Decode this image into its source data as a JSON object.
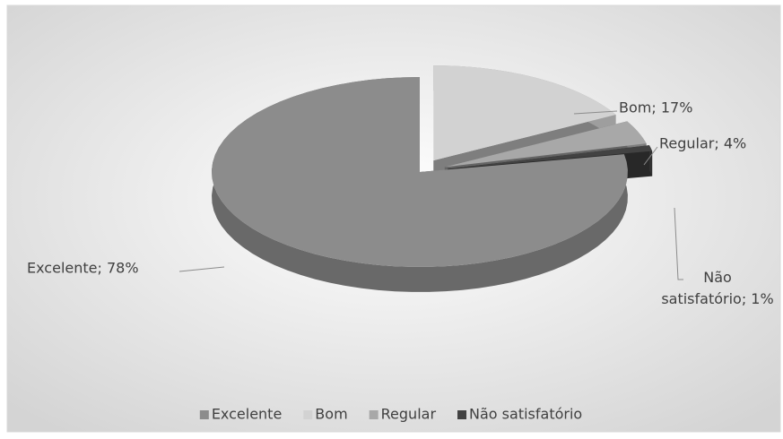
{
  "chart_data": {
    "type": "pie",
    "categories": [
      "Excelente",
      "Bom",
      "Regular",
      "Não satisfatório"
    ],
    "values": [
      78,
      17,
      4,
      1
    ],
    "value_labels": [
      "Excelente; 78%",
      "Bom; 17%",
      "Regular; 4%",
      "Não satisfatório; 1%"
    ],
    "colors": [
      "#8c8c8c",
      "#d2d2d2",
      "#a8a8a8",
      "#424242"
    ],
    "legend": "bottom"
  }
}
